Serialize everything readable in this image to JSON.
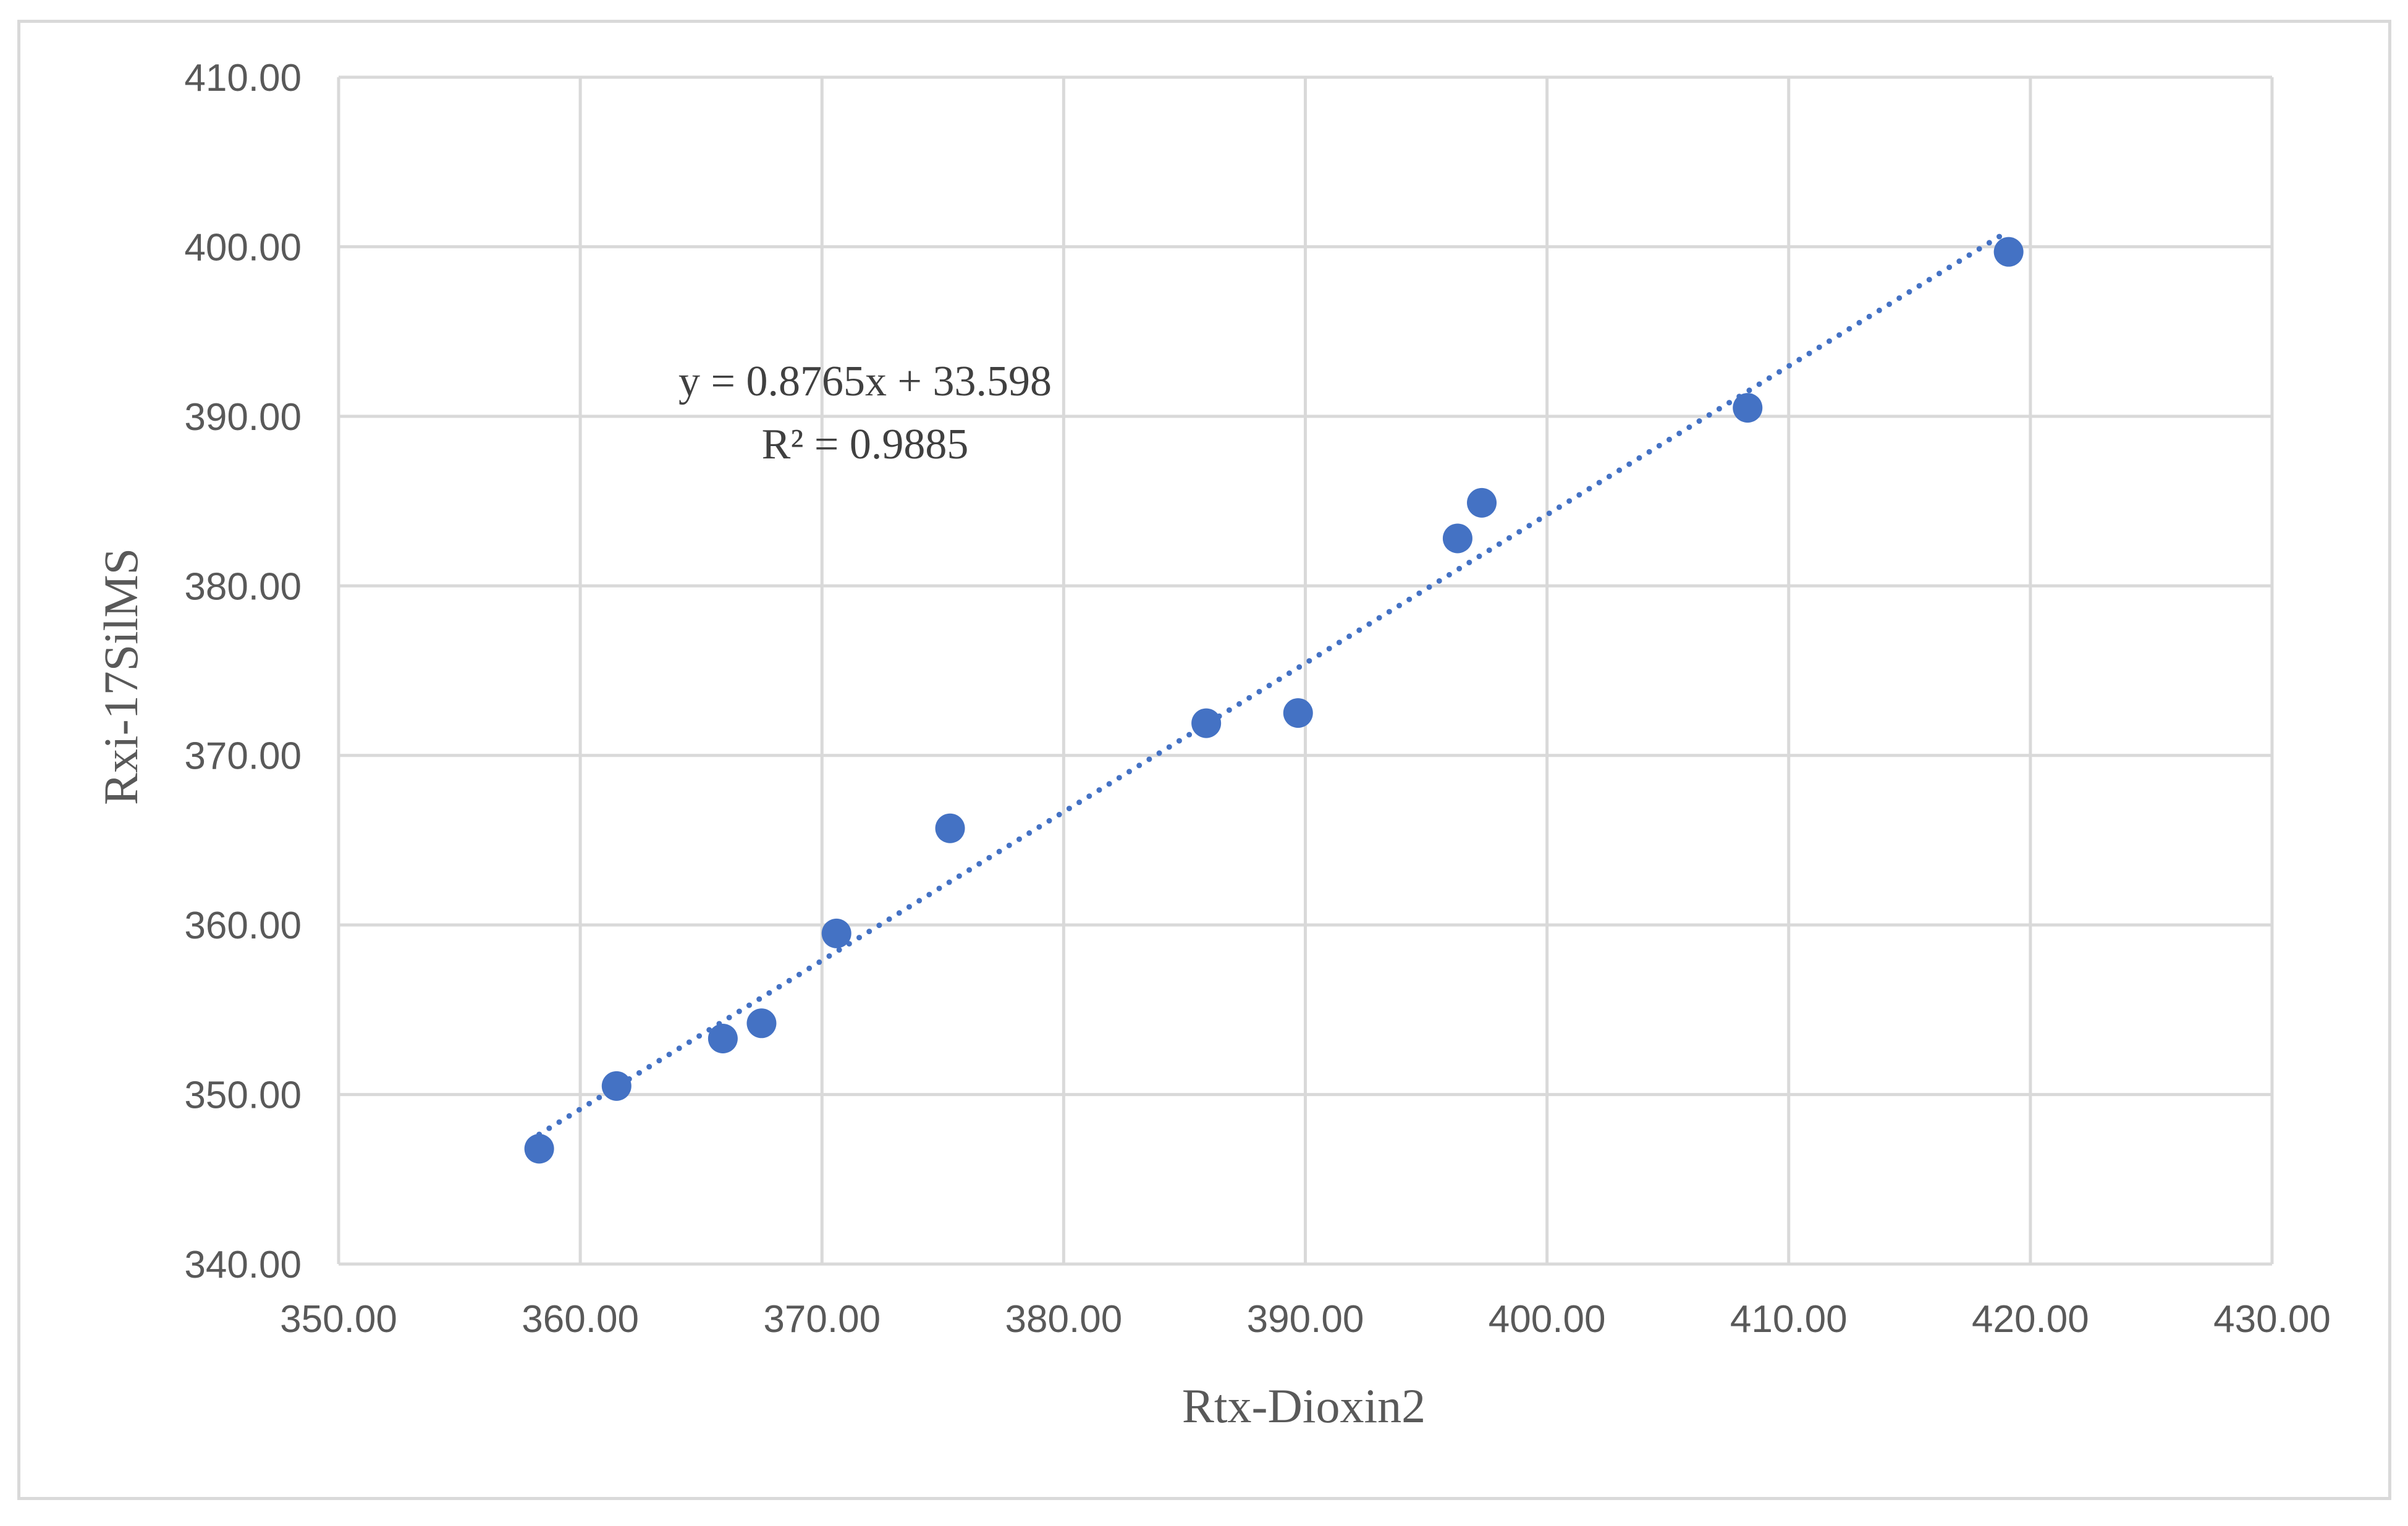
{
  "chart_data": {
    "type": "scatter",
    "xlabel": "Rtx-Dioxin2",
    "ylabel": "Rxi-17SilMS",
    "xlim": [
      350,
      430
    ],
    "ylim": [
      340,
      410
    ],
    "x_ticks": [
      350,
      360,
      370,
      380,
      390,
      400,
      410,
      420,
      430
    ],
    "y_ticks": [
      340,
      350,
      360,
      370,
      380,
      390,
      400,
      410
    ],
    "x_tick_labels": [
      "350.00",
      "360.00",
      "370.00",
      "380.00",
      "390.00",
      "400.00",
      "410.00",
      "420.00",
      "430.00"
    ],
    "y_tick_labels": [
      "340.00",
      "350.00",
      "360.00",
      "370.00",
      "380.00",
      "390.00",
      "400.00",
      "410.00"
    ],
    "grid": true,
    "series": [
      {
        "color": "#4472c4",
        "points": [
          {
            "x": 358.3,
            "y": 346.8
          },
          {
            "x": 361.5,
            "y": 350.5
          },
          {
            "x": 365.9,
            "y": 353.3
          },
          {
            "x": 367.5,
            "y": 354.2
          },
          {
            "x": 370.6,
            "y": 359.5
          },
          {
            "x": 375.3,
            "y": 365.7
          },
          {
            "x": 385.9,
            "y": 371.9
          },
          {
            "x": 389.7,
            "y": 372.5
          },
          {
            "x": 396.3,
            "y": 382.8
          },
          {
            "x": 397.3,
            "y": 384.9
          },
          {
            "x": 408.3,
            "y": 390.5
          },
          {
            "x": 419.1,
            "y": 399.7
          }
        ]
      }
    ],
    "trendline": {
      "type": "linear",
      "slope": 0.8765,
      "intercept": 33.598,
      "x_range": [
        358.3,
        419.1
      ],
      "style": "dotted",
      "color": "#4472c4",
      "equation": "y = 0.8765x + 33.598",
      "r_squared": "R² = 0.9885"
    }
  }
}
